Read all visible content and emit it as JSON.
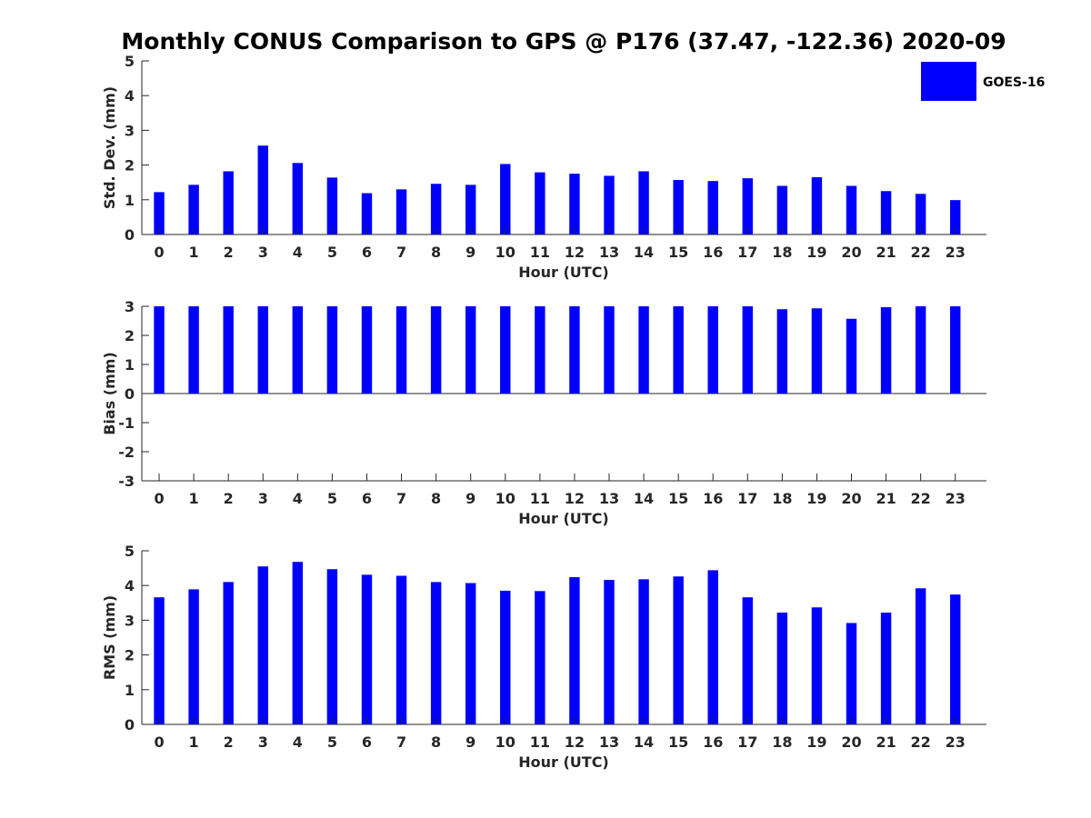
{
  "title": "Monthly CONUS Comparison to GPS @ P176 (37.47, -122.36) 2020-09",
  "legend": {
    "label": "GOES-16",
    "color": "#0000ff",
    "placement": "top-right"
  },
  "chart_data": [
    {
      "type": "bar",
      "xlabel": "Hour (UTC)",
      "ylabel": "Std. Dev. (mm)",
      "ylim": [
        0,
        5
      ],
      "yticks": [
        0,
        1,
        2,
        3,
        4,
        5
      ],
      "categories": [
        "0",
        "1",
        "2",
        "3",
        "4",
        "5",
        "6",
        "7",
        "8",
        "9",
        "10",
        "11",
        "12",
        "13",
        "14",
        "15",
        "16",
        "17",
        "18",
        "19",
        "20",
        "21",
        "22",
        "23"
      ],
      "series": [
        {
          "name": "GOES-16",
          "color": "#0000ff",
          "values": [
            1.22,
            1.43,
            1.82,
            2.56,
            2.06,
            1.64,
            1.19,
            1.3,
            1.46,
            1.43,
            2.03,
            1.79,
            1.75,
            1.69,
            1.82,
            1.57,
            1.54,
            1.62,
            1.4,
            1.65,
            1.4,
            1.25,
            1.17,
            0.99
          ]
        }
      ]
    },
    {
      "type": "bar",
      "xlabel": "Hour (UTC)",
      "ylabel": "Bias (mm)",
      "ylim": [
        -3,
        3
      ],
      "yticks": [
        -3,
        -2,
        -1,
        0,
        1,
        2,
        3
      ],
      "categories": [
        "0",
        "1",
        "2",
        "3",
        "4",
        "5",
        "6",
        "7",
        "8",
        "9",
        "10",
        "11",
        "12",
        "13",
        "14",
        "15",
        "16",
        "17",
        "18",
        "19",
        "20",
        "21",
        "22",
        "23"
      ],
      "series": [
        {
          "name": "GOES-16",
          "color": "#0000ff",
          "values": [
            3.0,
            3.0,
            3.0,
            3.0,
            3.0,
            3.0,
            3.0,
            3.0,
            3.0,
            3.0,
            3.0,
            3.0,
            3.0,
            3.0,
            3.0,
            3.0,
            3.0,
            3.0,
            2.9,
            2.93,
            2.57,
            2.97,
            3.0,
            3.0
          ]
        }
      ]
    },
    {
      "type": "bar",
      "xlabel": "Hour (UTC)",
      "ylabel": "RMS (mm)",
      "ylim": [
        0,
        5
      ],
      "yticks": [
        0,
        1,
        2,
        3,
        4,
        5
      ],
      "categories": [
        "0",
        "1",
        "2",
        "3",
        "4",
        "5",
        "6",
        "7",
        "8",
        "9",
        "10",
        "11",
        "12",
        "13",
        "14",
        "15",
        "16",
        "17",
        "18",
        "19",
        "20",
        "21",
        "22",
        "23"
      ],
      "series": [
        {
          "name": "GOES-16",
          "color": "#0000ff",
          "values": [
            3.66,
            3.89,
            4.1,
            4.55,
            4.68,
            4.47,
            4.31,
            4.28,
            4.1,
            4.07,
            3.85,
            3.84,
            4.24,
            4.16,
            4.18,
            4.26,
            4.44,
            3.66,
            3.22,
            3.37,
            2.92,
            3.22,
            3.92,
            3.74
          ]
        }
      ]
    }
  ]
}
